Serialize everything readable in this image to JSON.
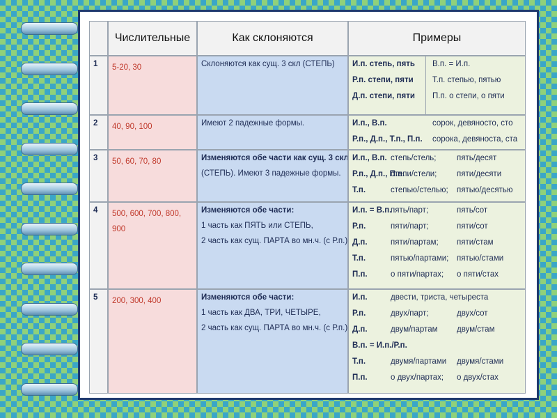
{
  "table": {
    "header": [
      "Числительные",
      "Как склоняются",
      "Примеры"
    ],
    "rows": [
      {
        "number": "1",
        "numerals": "5-20, 30",
        "rule": [
          "Склоняются как сущ. 3 скл (СТЕПЬ)"
        ],
        "examples": [
          [
            "И.п. степь, пять",
            "В.п. = И.п."
          ],
          [
            "Р.п. степи, пяти",
            "Т.п. степью, пятью"
          ],
          [
            "Д.п. степи, пяти",
            "П.п. о степи, о пяти"
          ]
        ]
      },
      {
        "number": "2",
        "numerals": "40, 90, 100",
        "rule": [
          "Имеют 2 падежные формы."
        ],
        "examples": [
          [
            "И.п., В.п.",
            "сорок, девяносто, сто"
          ],
          [
            "Р.п., Д.п., Т.п., П.п.",
            "сорока, девяноста, ста"
          ]
        ]
      },
      {
        "number": "3",
        "numerals": "50, 60, 70, 80",
        "rule": [
          "Изменяются обе части как сущ. 3 скл.",
          "(СТЕПЬ). Имеют 3 падежные формы."
        ],
        "examples": [
          [
            "И.п., В.п.",
            "степь/стель;",
            "пять/десят"
          ],
          [
            "Р.п., Д.п., П.п.",
            "степи/стели;",
            "пяти/десяти"
          ],
          [
            "Т.п.",
            "степью/стелью;",
            "пятью/десятью"
          ]
        ]
      },
      {
        "number": "4",
        "numerals": "500, 600, 700, 800, 900",
        "rule": [
          "Изменяются обе части:",
          "1 часть как ПЯТЬ или СТЕПЬ,",
          "2 часть как сущ. ПАРТА во мн.ч. (с Р.п.)."
        ],
        "examples": [
          [
            "И.п. = В.п.",
            "пять/парт;",
            "пять/сот"
          ],
          [
            "Р.п.",
            "пяти/парт;",
            "пяти/сот"
          ],
          [
            "Д.п.",
            "пяти/партам;",
            "пяти/стам"
          ],
          [
            "Т.п.",
            "пятью/партами;",
            "пятью/стами"
          ],
          [
            "П.п.",
            "о пяти/партах;",
            "о пяти/стах"
          ]
        ]
      },
      {
        "number": "5",
        "numerals": "200, 300, 400",
        "rule": [
          "Изменяются обе части:",
          "1 часть как ДВА, ТРИ, ЧЕТЫРЕ,",
          "2 часть как сущ. ПАРТА во мн.ч. (с Р.п.)."
        ],
        "examples": [
          [
            "И.п.",
            "двести, триста, четыреста"
          ],
          [
            "Р.п.",
            "двух/парт;",
            "двух/сот"
          ],
          [
            "Д.п.",
            "двум/партам",
            "двум/стам"
          ],
          [
            "В.п. = И.п./Р.п."
          ],
          [
            "Т.п.",
            "двумя/партами",
            "двумя/стами"
          ],
          [
            "П.п.",
            "о двух/партах;",
            "о двух/стах"
          ]
        ]
      }
    ]
  }
}
